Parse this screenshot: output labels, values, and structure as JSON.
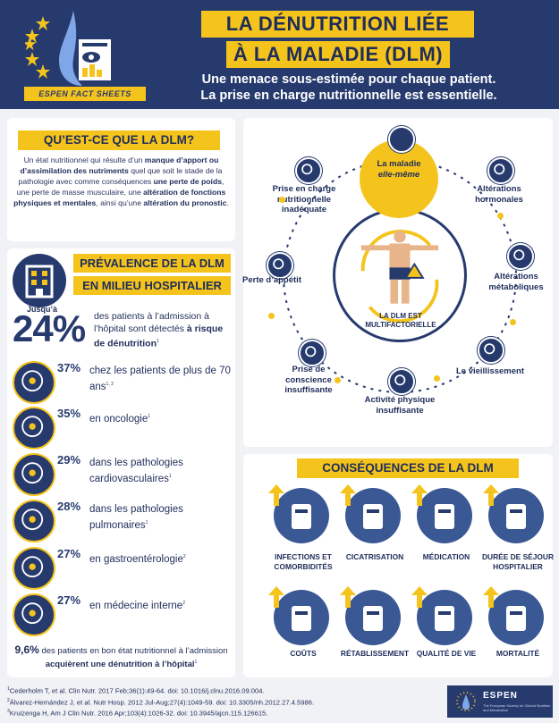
{
  "header": {
    "fact_tag": "ESPEN FACT SHEETS",
    "title_line1": "LA DÉNUTRITION LIÉE",
    "title_line2": "À LA MALADIE (DLM)",
    "subtitle_line1": "Une menace sous-estimée pour chaque patient.",
    "subtitle_line2": "La prise en charge nutritionnelle est essentielle."
  },
  "definition": {
    "title": "QU’EST-CE QUE LA DLM?",
    "text_1": "Un état nutritionnel qui résulte d’un ",
    "bold_1": "manque d’apport ou d’assimilation des nutriments",
    "text_2": " quel que soit le stade de la pathologie avec comme conséquences ",
    "bold_2": "une perte de poids",
    "text_3": ", une perte de masse musculaire, une ",
    "bold_3": "altération de fonctions physiques et mentales",
    "text_4": ", ainsi qu’une ",
    "bold_4": "altération du pronostic",
    "text_5": "."
  },
  "prevalence": {
    "title_line1": "PRÉVALENCE DE LA DLM",
    "title_line2": "EN MILIEU HOSPITALIER",
    "jusqu": "Jusqu’à",
    "headline_pct": "24%",
    "headline_text": "des patients à l’admission à l’hôpital sont détectés",
    "headline_bold": "à risque de dénutrition",
    "headline_sup": "1",
    "stats": [
      {
        "pct": "37%",
        "label": "chez les patients de plus de 70 ans",
        "sup": "1, 2",
        "icon": "elderly-person-icon"
      },
      {
        "pct": "35%",
        "label": "en oncologie",
        "sup": "1",
        "icon": "cancer-ribbon-icon"
      },
      {
        "pct": "29%",
        "label": "dans les pathologies cardiovasculaires",
        "sup": "1",
        "icon": "heart-icon"
      },
      {
        "pct": "28%",
        "label": "dans les pathologies pulmonaires",
        "sup": "1",
        "icon": "lungs-icon"
      },
      {
        "pct": "27%",
        "label": "en gastroentérologie",
        "sup": "2",
        "icon": "intestine-icon"
      },
      {
        "pct": "27%",
        "label": "en médecine interne",
        "sup": "2",
        "icon": "body-icon"
      }
    ],
    "note_pct": "9,6%",
    "note_text": " des patients en bon état nutritionnel à l’admission ",
    "note_bold": "acquièrent une dénutrition à l’hôpital",
    "note_sup": "1"
  },
  "multifactorial": {
    "hub_label": "LA DLM EST MULTIFACTORIELLE",
    "maladie_line1": "La maladie",
    "maladie_line2": "elle-même",
    "factors": [
      {
        "label": "Altérations hormonales",
        "icon": "pie-chart-icon"
      },
      {
        "label": "Altérations métaboliques",
        "icon": "molecule-icon"
      },
      {
        "label": "Le vieillissement",
        "icon": "hourglass-icon"
      },
      {
        "label": "Activité physique insuffisante",
        "icon": "running-icon"
      },
      {
        "label": "Prise de conscience insuffisante",
        "icon": "question-bubble-icon"
      },
      {
        "label": "Perte d’appétit",
        "icon": "no-food-icon"
      },
      {
        "label": "Prise en charge nutritionnelle inadéquate",
        "icon": "plate-icon"
      }
    ]
  },
  "consequences": {
    "title": "CONSÉQUENCES DE LA DLM",
    "items": [
      {
        "label": "INFECTIONS ET COMORBIDITÉS",
        "icon": "thermometer-icon"
      },
      {
        "label": "CICATRISATION",
        "icon": "bandaged-hand-icon"
      },
      {
        "label": "MÉDICATION",
        "icon": "medication-icon"
      },
      {
        "label": "DURÉE DE SÉJOUR HOSPITALIER",
        "icon": "calendar-icon"
      },
      {
        "label": "COÛTS",
        "icon": "euro-tag-icon"
      },
      {
        "label": "RÉTABLISSEMENT",
        "icon": "injured-person-icon"
      },
      {
        "label": "QUALITÉ DE VIE",
        "icon": "gauge-icon"
      },
      {
        "label": "MORTALITÉ",
        "icon": "heart-monitor-icon"
      }
    ]
  },
  "references": [
    {
      "sup": "1",
      "text": "Cederholm T, et al. Clin Nutr. 2017 Feb;36(1):49-64. doi: 10.1016/j.clnu.2016.09.004."
    },
    {
      "sup": "2",
      "text": "Álvarez-Hernández J, et al. Nutr Hosp. 2012 Jul-Aug;27(4):1049-59. doi: 10.3305/nh.2012.27.4.5986."
    },
    {
      "sup": "3",
      "text": "Kruizenga H, Am J Clin Nutr. 2016 Apr;103(4):1026-32. doi: 10.3945/ajcn.115.126615."
    }
  ],
  "footer_logo": {
    "name": "ESPEN",
    "sub": "The European Society for Clinical Nutrition and Metabolism"
  },
  "colors": {
    "navy": "#263a6e",
    "yellow": "#f5c41c",
    "blue": "#3a5893"
  }
}
